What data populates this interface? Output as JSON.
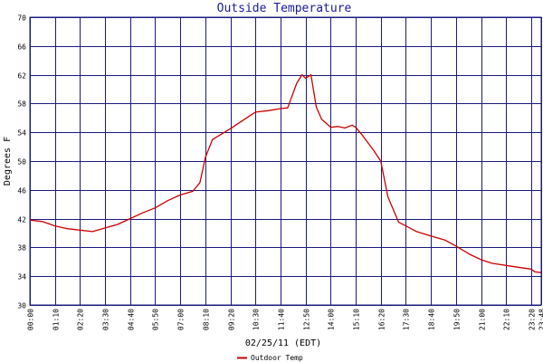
{
  "chart_data": {
    "type": "line",
    "title": "Outside Temperature",
    "xlabel": "02/25/11 (EDT)",
    "ylabel": "Degrees F",
    "ylim": [
      30,
      70
    ],
    "y_ticks": [
      30,
      34,
      38,
      42,
      46,
      50,
      54,
      58,
      62,
      66,
      70
    ],
    "x_ticks": [
      "00:00",
      "01:10",
      "02:20",
      "03:30",
      "04:40",
      "05:50",
      "07:00",
      "08:10",
      "09:20",
      "10:30",
      "11:40",
      "12:50",
      "14:00",
      "15:10",
      "16:20",
      "17:30",
      "18:40",
      "19:50",
      "21:00",
      "22:10",
      "23:20",
      "23:48"
    ],
    "grid": true,
    "legend_position": "bottom",
    "colors": {
      "series": "#cc0000",
      "grid": "#1a1a80",
      "title": "#1a1a9c"
    },
    "series": [
      {
        "name": "Outdoor Temp",
        "x": [
          "00:00",
          "00:35",
          "01:10",
          "01:45",
          "02:20",
          "02:55",
          "03:30",
          "04:05",
          "04:40",
          "05:15",
          "05:50",
          "06:25",
          "07:00",
          "07:35",
          "07:55",
          "08:10",
          "08:30",
          "09:20",
          "10:05",
          "10:30",
          "11:05",
          "11:40",
          "12:00",
          "12:25",
          "12:40",
          "12:50",
          "13:05",
          "13:20",
          "13:35",
          "14:00",
          "14:20",
          "14:40",
          "15:00",
          "15:10",
          "15:30",
          "16:00",
          "16:20",
          "16:40",
          "17:10",
          "17:30",
          "18:00",
          "18:40",
          "19:20",
          "19:50",
          "20:30",
          "21:00",
          "21:30",
          "22:10",
          "22:50",
          "23:20",
          "23:30",
          "23:48"
        ],
        "values": [
          41.8,
          41.6,
          41.0,
          40.6,
          40.4,
          40.2,
          40.7,
          41.2,
          42.0,
          42.8,
          43.5,
          44.5,
          45.3,
          45.8,
          47.0,
          50.5,
          53.0,
          54.5,
          56.0,
          56.8,
          57.0,
          57.3,
          57.4,
          60.8,
          62.0,
          61.5,
          62.0,
          57.5,
          55.8,
          54.7,
          54.8,
          54.6,
          55.0,
          54.7,
          53.5,
          51.5,
          50.0,
          45.0,
          41.5,
          41.0,
          40.2,
          39.6,
          39.0,
          38.2,
          37.0,
          36.3,
          35.8,
          35.5,
          35.2,
          35.0,
          34.6,
          34.5
        ]
      }
    ]
  }
}
